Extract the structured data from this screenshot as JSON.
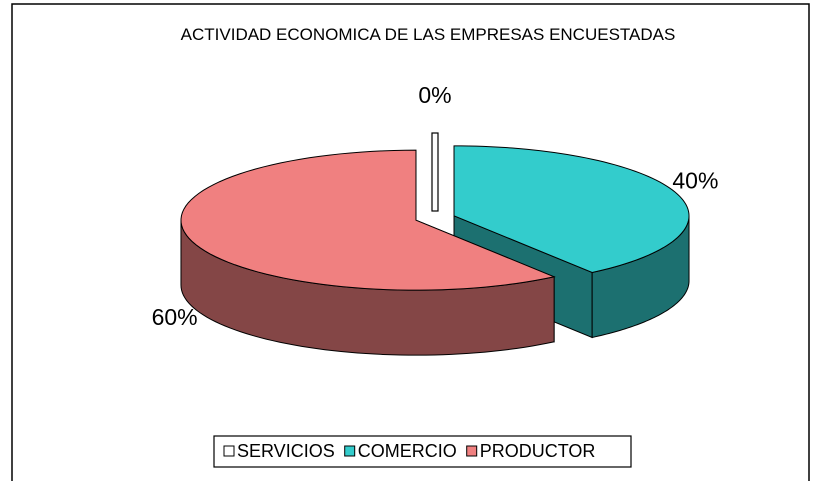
{
  "chart_data": {
    "type": "pie3d",
    "title": "ACTIVIDAD ECONOMICA DE LAS EMPRESAS ENCUESTADAS",
    "categories": [
      "SERVICIOS",
      "COMERCIO",
      "PRODUCTOR"
    ],
    "values": [
      0,
      40,
      60
    ],
    "value_labels": [
      "0%",
      "40%",
      "60%"
    ],
    "colors": [
      "#ffffff",
      "#33cccc",
      "#f08080"
    ],
    "legend": "bottom"
  }
}
